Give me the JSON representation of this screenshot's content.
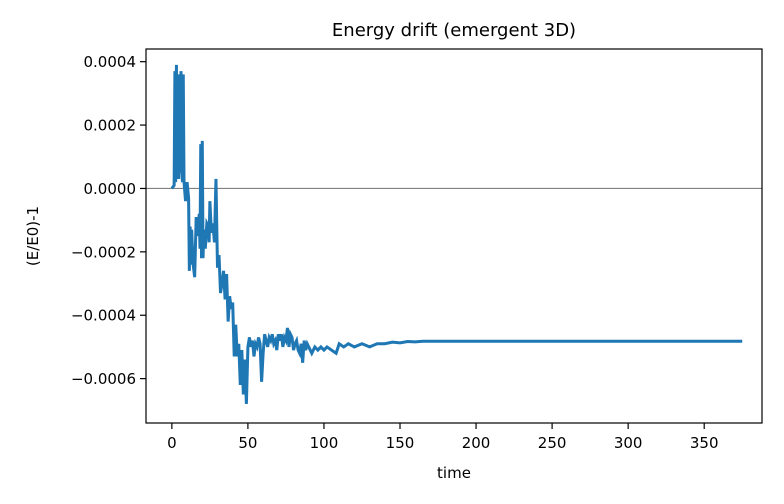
{
  "chart_data": {
    "type": "line",
    "title": "Energy drift (emergent 3D)",
    "xlabel": "time",
    "ylabel": "(E/E0)-1",
    "xlim": [
      -17,
      388
    ],
    "ylim": [
      -0.00074,
      0.00044
    ],
    "x_ticks": [
      0,
      50,
      100,
      150,
      200,
      250,
      300,
      350
    ],
    "x_tick_labels": [
      "0",
      "50",
      "100",
      "150",
      "200",
      "250",
      "300",
      "350"
    ],
    "y_ticks": [
      0.0004,
      0.0002,
      0.0,
      -0.0002,
      -0.0004,
      -0.0006
    ],
    "y_tick_labels": [
      "0.0004",
      "0.0002",
      "0.0000",
      "−0.0002",
      "−0.0004",
      "−0.0006"
    ],
    "reference_line": {
      "y": 0.0,
      "color": "#808080"
    },
    "grid": false,
    "series": [
      {
        "color": "#1f77b4",
        "x": [
          0,
          1.5,
          2,
          2.5,
          3,
          3.5,
          4,
          4.5,
          5,
          5.5,
          6,
          6.5,
          7,
          7.5,
          8,
          9,
          10,
          11,
          11.5,
          12,
          12.5,
          13,
          14,
          15,
          16,
          17,
          18,
          18.5,
          19,
          19.5,
          20,
          20.5,
          21,
          22,
          23,
          24,
          24.5,
          25,
          26,
          27,
          28,
          29,
          30,
          31,
          32,
          33,
          34,
          35,
          36,
          37,
          38,
          39,
          40,
          41,
          42,
          43,
          44,
          45,
          46,
          47,
          48,
          49,
          50,
          51,
          52,
          53,
          54,
          55,
          56,
          57,
          58,
          59,
          60,
          61,
          62,
          63,
          64,
          65,
          66,
          67,
          68,
          69,
          70,
          71,
          72,
          73,
          74,
          75,
          76,
          77,
          78,
          79,
          80,
          81,
          82,
          83,
          84,
          85,
          86,
          87,
          88,
          89,
          90,
          92,
          94,
          96,
          98,
          100,
          102,
          105,
          108,
          110,
          113,
          116,
          120,
          125,
          130,
          135,
          140,
          145,
          150,
          155,
          160,
          165,
          170,
          180,
          200,
          250,
          300,
          350,
          375
        ],
        "y": [
          0.0,
          1e-05,
          0.00037,
          2e-05,
          0.00039,
          4e-05,
          0.00035,
          3e-05,
          0.00036,
          5e-05,
          0.00037,
          6e-05,
          2e-05,
          0.00036,
          2e-05,
          -4e-05,
          2e-05,
          -3e-05,
          -0.00026,
          -0.00012,
          -0.00024,
          -0.00013,
          -0.00024,
          -0.00028,
          -9e-05,
          -0.00015,
          -8e-05,
          -0.00019,
          0.00014,
          -0.00022,
          0.00015,
          -0.00022,
          -0.00013,
          -0.00019,
          -0.00011,
          -0.00012,
          -0.00017,
          -4e-05,
          -0.00014,
          -0.00011,
          -0.00017,
          3e-05,
          -0.00025,
          -0.00021,
          -0.00033,
          -0.0003,
          -0.00026,
          -0.00035,
          -0.00027,
          -0.00042,
          -0.00034,
          -0.00038,
          -0.00036,
          -0.00053,
          -0.00043,
          -0.00053,
          -0.00049,
          -0.00062,
          -0.00051,
          -0.00065,
          -0.00054,
          -0.00068,
          -0.0005,
          -0.00047,
          -0.0005,
          -0.00048,
          -0.00053,
          -0.00049,
          -0.0005,
          -0.00047,
          -0.00049,
          -0.00061,
          -0.00052,
          -0.00046,
          -0.00048,
          -0.0005,
          -0.00047,
          -0.00048,
          -0.00046,
          -0.00049,
          -0.00048,
          -0.00051,
          -0.00046,
          -0.00048,
          -0.00046,
          -0.0005,
          -0.00047,
          -0.00048,
          -0.00044,
          -0.0005,
          -0.00046,
          -0.00047,
          -0.00051,
          -0.00049,
          -0.00048,
          -0.00051,
          -0.00052,
          -0.00049,
          -0.00055,
          -0.00048,
          -0.00051,
          -0.00049,
          -0.0005,
          -0.00052,
          -0.0005,
          -0.00051,
          -0.0005,
          -0.00051,
          -0.0005,
          -0.00051,
          -0.00052,
          -0.00049,
          -0.0005,
          -0.00049,
          -0.0005,
          -0.00049,
          -0.0005,
          -0.00049,
          -0.00049,
          -0.000485,
          -0.000487,
          -0.000483,
          -0.000484,
          -0.000482,
          -0.000482,
          -0.000482,
          -0.000482,
          -0.000482,
          -0.000482,
          -0.000482,
          -0.000482
        ]
      }
    ]
  }
}
